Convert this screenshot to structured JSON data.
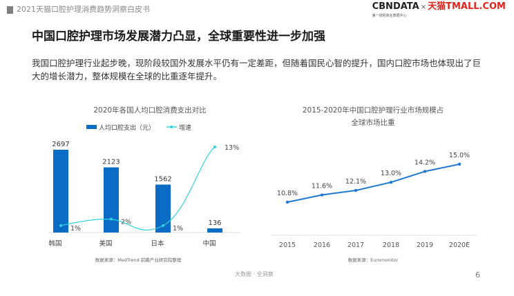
{
  "header": {
    "doc_title": "2021天猫口腔护理消费趋势洞察白皮书",
    "logo_cbn": "CBNDATA",
    "logo_x": "×",
    "logo_tmall": "天猫TMALL.COM",
    "logo_sub": "第一财经商业数据中心"
  },
  "slide": {
    "title": "中国口腔护理市场发展潜力凸显，全球重要性进一步加强",
    "body": "我国口腔护理行业起步晚，现阶段较国外发展水平仍有一定差距，但随着国民心智的提升，国内口腔市场也体现出了巨大的增长潜力，整体规模在全球的比重逐年提升。"
  },
  "footer": {
    "tagline": "大数据 · 全洞察",
    "page": "6"
  },
  "colors": {
    "bar": "#0a6cc4",
    "growth": "#2dd3dc",
    "line": "#1f78d1"
  },
  "chart_data": [
    {
      "type": "bar",
      "title": "2020年各国人均口腔消费支出对比",
      "categories": [
        "韩国",
        "美国",
        "日本",
        "中国"
      ],
      "series": [
        {
          "name": "人均口腔支出（元）",
          "type": "bar",
          "values": [
            2697,
            2123,
            1562,
            136
          ],
          "labels": [
            "2697",
            "2123",
            "1562",
            "136"
          ]
        },
        {
          "name": "增速",
          "type": "line",
          "values": [
            1,
            2,
            1,
            13
          ],
          "labels": [
            "1%",
            "2%",
            "1%",
            "13%"
          ]
        }
      ],
      "legend": "top",
      "source": "数据来源：MedTrend 前瞻产业研究院整理"
    },
    {
      "type": "line",
      "title": [
        "2015-2020年中国口腔护理行业市场规模占",
        "全球市场比重"
      ],
      "categories": [
        "2015",
        "2016",
        "2017",
        "2018",
        "2019",
        "2020E"
      ],
      "values": [
        10.8,
        11.6,
        12.1,
        13.0,
        14.2,
        15.0
      ],
      "labels": [
        "10.8%",
        "11.6%",
        "12.1%",
        "13.0%",
        "14.2%",
        "15.0%"
      ],
      "source": "数据来源：Euromonitor"
    }
  ]
}
